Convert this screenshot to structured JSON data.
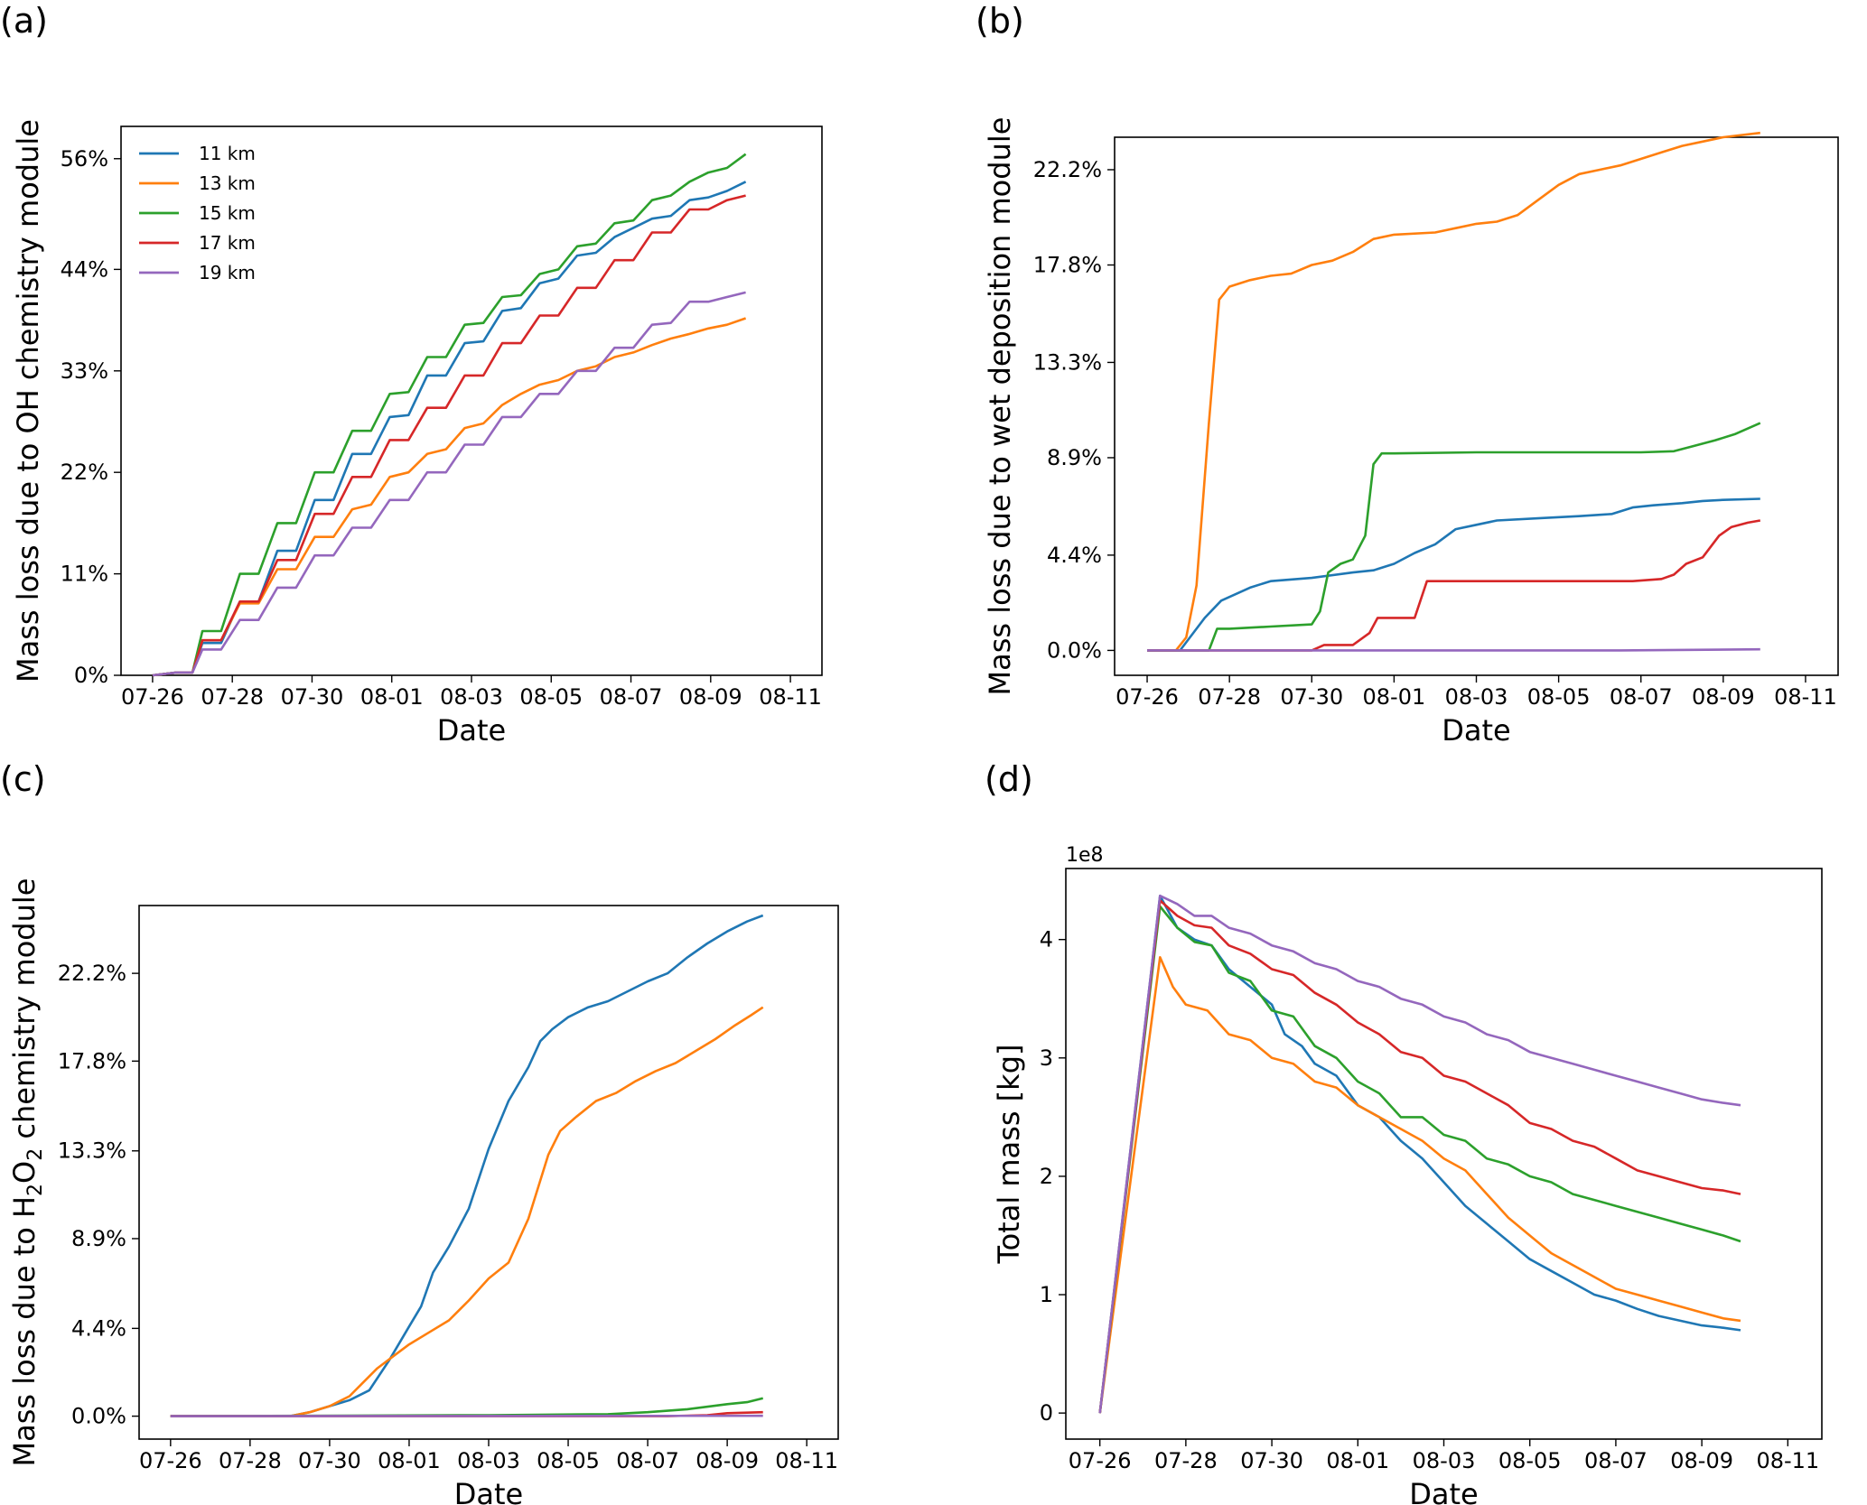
{
  "colors": {
    "11 km": "#1f77b4",
    "13 km": "#ff7f0e",
    "15 km": "#2ca02c",
    "17 km": "#d62728",
    "19 km": "#9467bd"
  },
  "chart_data": [
    {
      "panel_label": "(a)",
      "type": "line",
      "ylabel": "Mass loss due to OH chemistry module",
      "xlabel": "Date",
      "xlim": [
        "07-26",
        "08-11"
      ],
      "x_ticks": [
        "07-26",
        "07-28",
        "07-30",
        "08-01",
        "08-03",
        "08-05",
        "08-07",
        "08-09",
        "08-11"
      ],
      "ylim": [
        0,
        59.5
      ],
      "y_ticks": [
        {
          "value": 0,
          "label": "0%"
        },
        {
          "value": 11,
          "label": "11%"
        },
        {
          "value": 22,
          "label": "22%"
        },
        {
          "value": 33,
          "label": "33%"
        },
        {
          "value": 44,
          "label": "44%"
        },
        {
          "value": 56,
          "label": "56%"
        }
      ],
      "legend": {
        "placement": "top-left",
        "entries": [
          "11 km",
          "13 km",
          "15 km",
          "17 km",
          "19 km"
        ]
      },
      "x_days": [
        0,
        0.5,
        1,
        1.5,
        2,
        2.5,
        3,
        3.5,
        4,
        4.5,
        5,
        5.5,
        6,
        6.5,
        7,
        7.5,
        8,
        8.5,
        9,
        9.5,
        10,
        10.5,
        11,
        11.5,
        12,
        12.5,
        13,
        13.5,
        14,
        14.5,
        15
      ],
      "series": [
        {
          "name": "11 km",
          "values": [
            0,
            0.3,
            4.0,
            7.8,
            12.5,
            15.0,
            19.0,
            24.0,
            28.0,
            31.0,
            32.5,
            35.0,
            36.5,
            40.0,
            42.5,
            43.5,
            45.5,
            47.5,
            49.5,
            51.2,
            52.0,
            52.5,
            53.0,
            53.0,
            53.0,
            53.0,
            53.0,
            53.0,
            53.0,
            53.0,
            53.0
          ]
        },
        {
          "name": "13 km",
          "values": [
            0,
            0.3,
            3.5,
            7.0,
            11.5,
            14.0,
            15.5,
            18.5,
            21.5,
            23.5,
            25.5,
            27.5,
            29.5,
            31.0,
            32.0,
            33.5,
            34.5,
            36.0,
            37.0,
            38.5,
            38.5,
            38.5,
            38.5,
            38.5,
            38.5,
            38.5,
            38.5,
            38.5,
            38.5,
            38.5,
            38.5
          ]
        }
      ]
    },
    {
      "panel_label": "(b)",
      "type": "line",
      "ylabel": "Mass loss due to wet deposition module",
      "xlabel": "Date",
      "xlim": [
        "07-26",
        "08-11"
      ],
      "x_ticks": [
        "07-26",
        "07-28",
        "07-30",
        "08-01",
        "08-03",
        "08-05",
        "08-07",
        "08-09",
        "08-11"
      ],
      "ylim": [
        -1.15,
        23.7
      ],
      "y_ticks": [
        {
          "value": 0,
          "label": "0.0%"
        },
        {
          "value": 4.4,
          "label": "4.4%"
        },
        {
          "value": 8.9,
          "label": "8.9%"
        },
        {
          "value": 13.3,
          "label": "13.3%"
        },
        {
          "value": 17.8,
          "label": "17.8%"
        },
        {
          "value": 22.2,
          "label": "22.2%"
        }
      ]
    },
    {
      "panel_label": "(c)",
      "type": "line",
      "ylabel": "Mass loss due to H₂O₂ chemistry module",
      "ylabel_parts": [
        "Mass loss due to H",
        "2",
        "O",
        "2",
        " chemistry module"
      ],
      "xlabel": "Date",
      "xlim": [
        "07-26",
        "08-11"
      ],
      "x_ticks": [
        "07-26",
        "07-28",
        "07-30",
        "08-01",
        "08-03",
        "08-05",
        "08-07",
        "08-09",
        "08-11"
      ],
      "ylim": [
        -1.15,
        25.6
      ],
      "y_ticks": [
        {
          "value": 0,
          "label": "0.0%"
        },
        {
          "value": 4.4,
          "label": "4.4%"
        },
        {
          "value": 8.9,
          "label": "8.9%"
        },
        {
          "value": 13.3,
          "label": "13.3%"
        },
        {
          "value": 17.8,
          "label": "17.8%"
        },
        {
          "value": 22.2,
          "label": "22.2%"
        }
      ]
    },
    {
      "panel_label": "(d)",
      "type": "line",
      "ylabel": "Total mass [kg]",
      "xlabel": "Date",
      "offset_text": "1e8",
      "xlim": [
        "07-26",
        "08-11"
      ],
      "x_ticks": [
        "07-26",
        "07-28",
        "07-30",
        "08-01",
        "08-03",
        "08-05",
        "08-07",
        "08-09",
        "08-11"
      ],
      "ylim": [
        -0.22,
        4.6
      ],
      "y_ticks": [
        {
          "value": 0,
          "label": "0"
        },
        {
          "value": 1,
          "label": "1"
        },
        {
          "value": 2,
          "label": "2"
        },
        {
          "value": 3,
          "label": "3"
        },
        {
          "value": 4,
          "label": "4"
        }
      ]
    }
  ]
}
